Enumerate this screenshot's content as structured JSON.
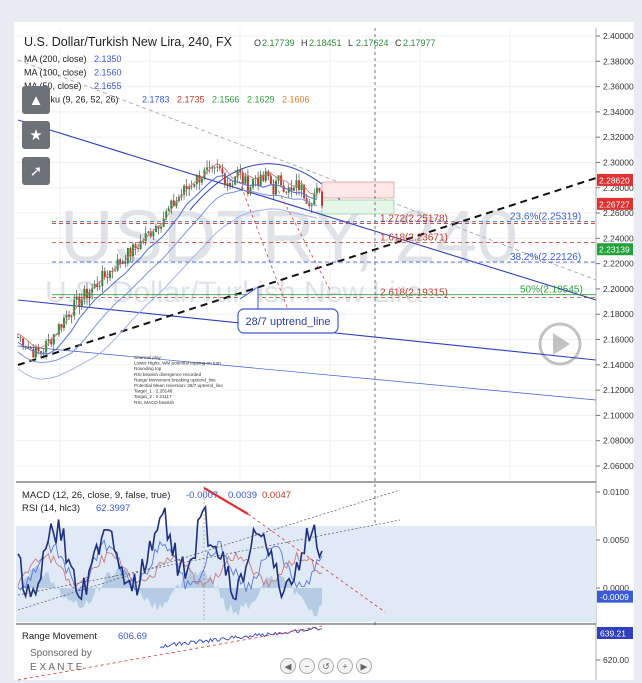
{
  "header": {
    "symbol_title": "U.S. Dollar/Turkish New Lira, 240, FX",
    "ohlc": {
      "o_label": "O",
      "o": "2.17739",
      "h_label": "H",
      "h": "2.18451",
      "l_label": "L",
      "l": "2.17624",
      "c_label": "C",
      "c": "2.17977"
    }
  },
  "indicators": [
    {
      "label": "MA (200, close)",
      "values": [
        "2.1350"
      ],
      "colors": [
        "#3b5bd6"
      ]
    },
    {
      "label": "MA (100, close)",
      "values": [
        "2.1560"
      ],
      "colors": [
        "#3b5bd6"
      ]
    },
    {
      "label": "MA (50, close)",
      "values": [
        "2.1655"
      ],
      "colors": [
        "#3b5bd6"
      ]
    },
    {
      "label": "Ichimoku (9, 26, 52, 26)",
      "values": [
        "2.1783",
        "2.1735",
        "2.1566",
        "2.1629",
        "2.1606"
      ],
      "colors": [
        "#3b5bd6",
        "#c0392b",
        "#2e9e3e",
        "#2e9e3e",
        "#e07b28"
      ]
    }
  ],
  "watermark": {
    "big": "USDTRY, 240",
    "small": "U.S. Dollar/Turkish New Lira"
  },
  "price_axis": {
    "ticks": [
      "2.40000",
      "2.38000",
      "2.36000",
      "2.34000",
      "2.32000",
      "2.30000",
      "2.28000",
      "2.26000",
      "2.24000",
      "2.22000",
      "2.20000",
      "2.18000",
      "2.16000",
      "2.14000",
      "2.12000",
      "2.10000",
      "2.08000",
      "2.06000"
    ],
    "tags": [
      {
        "text": "2.28620",
        "color": "#e03030",
        "value": 2.2862
      },
      {
        "text": "2.26727",
        "color": "#e03030",
        "value": 2.26727
      },
      {
        "text": "2.23139",
        "color": "#22a23a",
        "value": 2.23139
      }
    ]
  },
  "fib_levels": [
    {
      "text": "1.272(2.25178)",
      "value": 2.25178,
      "color": "#c0392b"
    },
    {
      "text": "1.618(2.23671)",
      "value": 2.23671,
      "color": "#c0392b"
    },
    {
      "text": "2.618(2.19315)",
      "value": 2.19315,
      "color": "#c0392b"
    },
    {
      "text": "23.6%(2.25319)",
      "value": 2.25319,
      "color": "#3b5bd6"
    },
    {
      "text": "38.2%(2.22126)",
      "value": 2.22126,
      "color": "#3b5bd6"
    },
    {
      "text": "50%(2.19545)",
      "value": 2.19545,
      "color": "#2e9e3e"
    }
  ],
  "callout": {
    "text": "28/7 uptrend_line"
  },
  "notes": [
    "Channel play",
    "Lower Highs, WM potential topping on turn",
    "Rounding top",
    "RSI bearish divergence recorded",
    "Range Movement breaking uptrend_line",
    "Potential Mean reversion: 28/7 uptrend_line",
    "Target_1 : 2.20148",
    "Target_2 : 2.21117",
    "RSI, MACD bearish"
  ],
  "macd_panel": {
    "label": "MACD (12, 26, close, 9, false, true)",
    "values": [
      "-0.0007",
      "0.0039",
      "0.0047"
    ],
    "colors": [
      "#3b5bd6",
      "#3b5bd6",
      "#c0392b"
    ],
    "rsi_label": "RSI (14, hlc3)",
    "rsi_value": "62.3997",
    "ticks": [
      "0.0100",
      "0.0050",
      "0.0000"
    ],
    "tag": "-0.0009"
  },
  "range_panel": {
    "label": "Range Movement",
    "value": "606.69",
    "ticks": [
      "620.00"
    ],
    "tag": "639.21"
  },
  "sponsor": {
    "line1": "Sponsored by",
    "line2": "E X A N T E"
  },
  "nav_controls": [
    "◀",
    "−",
    "↺",
    "+",
    "▶"
  ],
  "chart_data": {
    "type": "candlestick",
    "title": "U.S. Dollar/Turkish New Lira, 240, FX",
    "timeframe": "240",
    "ylim": [
      2.05,
      2.405
    ],
    "last": {
      "open": 2.17739,
      "high": 2.18451,
      "low": 2.17624,
      "close": 2.17977
    },
    "close_path": [
      2.162,
      2.158,
      2.153,
      2.149,
      2.151,
      2.158,
      2.165,
      2.172,
      2.18,
      2.185,
      2.19,
      2.195,
      2.199,
      2.204,
      2.209,
      2.213,
      2.219,
      2.222,
      2.227,
      2.231,
      2.236,
      2.241,
      2.247,
      2.252,
      2.257,
      2.263,
      2.27,
      2.276,
      2.281,
      2.286,
      2.289,
      2.292,
      2.29,
      2.295,
      2.288,
      2.283,
      2.293,
      2.286,
      2.28,
      2.289,
      2.284,
      2.29,
      2.279,
      2.286,
      2.281,
      2.275,
      2.283,
      2.276,
      2.27,
      2.277,
      2.27
    ]
  }
}
